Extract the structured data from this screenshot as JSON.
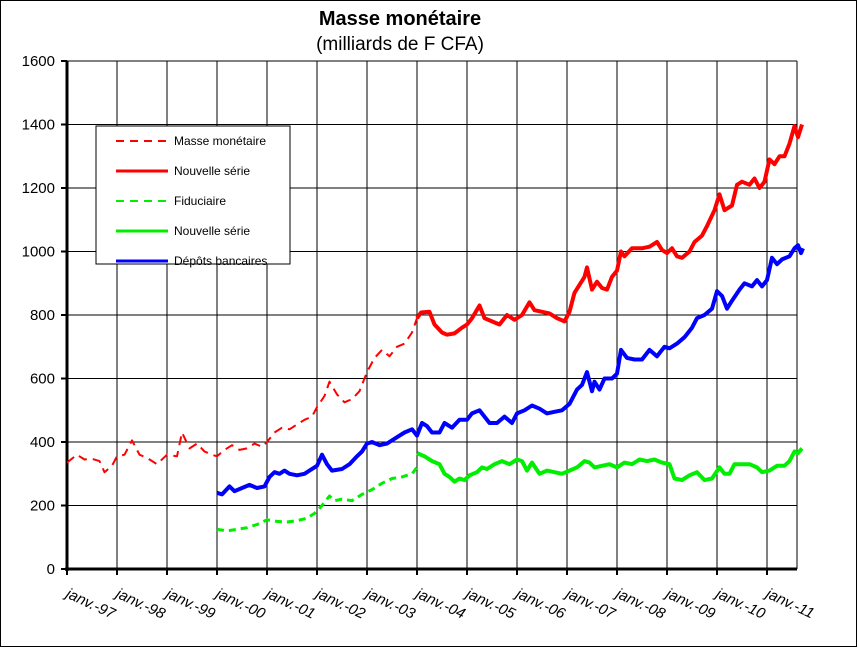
{
  "chart_data": {
    "type": "line",
    "title": "Masse monétaire",
    "subtitle": "(milliards de F CFA)",
    "xlabel": "",
    "ylabel": "",
    "ylim": [
      0,
      1600
    ],
    "yticks": [
      0,
      200,
      400,
      600,
      800,
      1000,
      1200,
      1400,
      1600
    ],
    "x_tick_labels": [
      "janv.-97",
      "janv.-98",
      "janv.-99",
      "janv.-00",
      "janv.-01",
      "janv.-02",
      "janv.-03",
      "janv.-04",
      "janv.-05",
      "janv.-06",
      "janv.-07",
      "janv.-08",
      "janv.-09",
      "janv.-10",
      "janv.-11"
    ],
    "xlim": [
      1997.0,
      2011.6
    ],
    "grid": true,
    "legend_position": "top-left",
    "series": [
      {
        "name": "Masse monétaire",
        "color": "#ff0000",
        "dash": true,
        "width": 2,
        "points": [
          [
            1997.0,
            335
          ],
          [
            1997.2,
            360
          ],
          [
            1997.35,
            345
          ],
          [
            1997.5,
            347
          ],
          [
            1997.65,
            340
          ],
          [
            1997.75,
            305
          ],
          [
            1997.9,
            325
          ],
          [
            1998.0,
            355
          ],
          [
            1998.15,
            360
          ],
          [
            1998.3,
            405
          ],
          [
            1998.45,
            360
          ],
          [
            1998.6,
            350
          ],
          [
            1998.8,
            330
          ],
          [
            1999.0,
            360
          ],
          [
            1999.2,
            355
          ],
          [
            1999.3,
            430
          ],
          [
            1999.45,
            380
          ],
          [
            1999.6,
            395
          ],
          [
            1999.75,
            370
          ],
          [
            1999.9,
            360
          ],
          [
            2000.0,
            355
          ],
          [
            2000.15,
            375
          ],
          [
            2000.3,
            390
          ],
          [
            2000.45,
            375
          ],
          [
            2000.6,
            380
          ],
          [
            2000.75,
            395
          ],
          [
            2000.9,
            385
          ],
          [
            2001.0,
            400
          ],
          [
            2001.15,
            430
          ],
          [
            2001.3,
            445
          ],
          [
            2001.45,
            440
          ],
          [
            2001.6,
            455
          ],
          [
            2001.75,
            470
          ],
          [
            2001.9,
            480
          ],
          [
            2002.0,
            510
          ],
          [
            2002.15,
            545
          ],
          [
            2002.25,
            590
          ],
          [
            2002.4,
            550
          ],
          [
            2002.55,
            525
          ],
          [
            2002.7,
            535
          ],
          [
            2002.85,
            560
          ],
          [
            2003.0,
            620
          ],
          [
            2003.15,
            665
          ],
          [
            2003.3,
            690
          ],
          [
            2003.45,
            670
          ],
          [
            2003.6,
            700
          ],
          [
            2003.75,
            710
          ],
          [
            2003.9,
            745
          ],
          [
            2004.0,
            790
          ]
        ]
      },
      {
        "name": "Nouvelle série",
        "color": "#ff0000",
        "dash": false,
        "width": 4,
        "points": [
          [
            2004.0,
            790
          ],
          [
            2004.08,
            808
          ],
          [
            2004.25,
            810
          ],
          [
            2004.35,
            770
          ],
          [
            2004.5,
            745
          ],
          [
            2004.6,
            738
          ],
          [
            2004.75,
            742
          ],
          [
            2004.9,
            760
          ],
          [
            2005.0,
            770
          ],
          [
            2005.1,
            790
          ],
          [
            2005.25,
            830
          ],
          [
            2005.35,
            790
          ],
          [
            2005.5,
            780
          ],
          [
            2005.65,
            770
          ],
          [
            2005.8,
            800
          ],
          [
            2005.95,
            785
          ],
          [
            2006.1,
            800
          ],
          [
            2006.25,
            840
          ],
          [
            2006.35,
            815
          ],
          [
            2006.5,
            810
          ],
          [
            2006.65,
            805
          ],
          [
            2006.8,
            790
          ],
          [
            2006.95,
            780
          ],
          [
            2007.05,
            810
          ],
          [
            2007.15,
            870
          ],
          [
            2007.35,
            920
          ],
          [
            2007.4,
            950
          ],
          [
            2007.5,
            880
          ],
          [
            2007.6,
            905
          ],
          [
            2007.7,
            885
          ],
          [
            2007.8,
            880
          ],
          [
            2007.9,
            920
          ],
          [
            2008.0,
            940
          ],
          [
            2008.08,
            1000
          ],
          [
            2008.15,
            985
          ],
          [
            2008.3,
            1010
          ],
          [
            2008.5,
            1010
          ],
          [
            2008.65,
            1015
          ],
          [
            2008.8,
            1030
          ],
          [
            2008.9,
            1005
          ],
          [
            2009.0,
            995
          ],
          [
            2009.1,
            1010
          ],
          [
            2009.2,
            985
          ],
          [
            2009.3,
            980
          ],
          [
            2009.45,
            1000
          ],
          [
            2009.55,
            1030
          ],
          [
            2009.7,
            1050
          ],
          [
            2009.8,
            1080
          ],
          [
            2009.95,
            1130
          ],
          [
            2010.05,
            1180
          ],
          [
            2010.15,
            1130
          ],
          [
            2010.3,
            1145
          ],
          [
            2010.4,
            1210
          ],
          [
            2010.5,
            1220
          ],
          [
            2010.65,
            1210
          ],
          [
            2010.75,
            1230
          ],
          [
            2010.85,
            1200
          ],
          [
            2010.95,
            1220
          ],
          [
            2011.05,
            1290
          ],
          [
            2011.15,
            1275
          ],
          [
            2011.25,
            1300
          ],
          [
            2011.35,
            1300
          ],
          [
            2011.45,
            1340
          ],
          [
            2011.55,
            1395
          ],
          [
            2011.62,
            1360
          ],
          [
            2011.7,
            1400
          ]
        ]
      },
      {
        "name": "Fiduciaire",
        "color": "#00ee00",
        "dash": true,
        "width": 3,
        "points": [
          [
            2000.0,
            125
          ],
          [
            2000.2,
            120
          ],
          [
            2000.4,
            125
          ],
          [
            2000.6,
            130
          ],
          [
            2000.8,
            140
          ],
          [
            2001.0,
            155
          ],
          [
            2001.2,
            150
          ],
          [
            2001.4,
            148
          ],
          [
            2001.6,
            152
          ],
          [
            2001.8,
            160
          ],
          [
            2001.95,
            175
          ],
          [
            2002.1,
            200
          ],
          [
            2002.25,
            230
          ],
          [
            2002.35,
            215
          ],
          [
            2002.5,
            220
          ],
          [
            2002.7,
            215
          ],
          [
            2002.9,
            235
          ],
          [
            2003.1,
            250
          ],
          [
            2003.3,
            270
          ],
          [
            2003.5,
            285
          ],
          [
            2003.7,
            290
          ],
          [
            2003.9,
            300
          ],
          [
            2004.0,
            320
          ]
        ]
      },
      {
        "name": "Nouvelle série",
        "color": "#00ee00",
        "dash": false,
        "width": 4,
        "points": [
          [
            2004.0,
            365
          ],
          [
            2004.15,
            355
          ],
          [
            2004.3,
            340
          ],
          [
            2004.45,
            330
          ],
          [
            2004.55,
            300
          ],
          [
            2004.65,
            290
          ],
          [
            2004.75,
            275
          ],
          [
            2004.85,
            285
          ],
          [
            2004.95,
            280
          ],
          [
            2005.05,
            295
          ],
          [
            2005.2,
            305
          ],
          [
            2005.3,
            320
          ],
          [
            2005.4,
            315
          ],
          [
            2005.55,
            330
          ],
          [
            2005.7,
            340
          ],
          [
            2005.85,
            330
          ],
          [
            2006.0,
            345
          ],
          [
            2006.1,
            340
          ],
          [
            2006.2,
            310
          ],
          [
            2006.3,
            335
          ],
          [
            2006.45,
            300
          ],
          [
            2006.6,
            310
          ],
          [
            2006.75,
            305
          ],
          [
            2006.9,
            300
          ],
          [
            2007.05,
            310
          ],
          [
            2007.2,
            320
          ],
          [
            2007.35,
            340
          ],
          [
            2007.45,
            335
          ],
          [
            2007.55,
            320
          ],
          [
            2007.7,
            325
          ],
          [
            2007.85,
            330
          ],
          [
            2008.0,
            320
          ],
          [
            2008.15,
            335
          ],
          [
            2008.3,
            330
          ],
          [
            2008.45,
            345
          ],
          [
            2008.6,
            340
          ],
          [
            2008.75,
            345
          ],
          [
            2008.9,
            335
          ],
          [
            2009.05,
            330
          ],
          [
            2009.15,
            285
          ],
          [
            2009.3,
            280
          ],
          [
            2009.45,
            295
          ],
          [
            2009.6,
            305
          ],
          [
            2009.75,
            280
          ],
          [
            2009.9,
            285
          ],
          [
            2010.05,
            320
          ],
          [
            2010.15,
            300
          ],
          [
            2010.25,
            300
          ],
          [
            2010.35,
            330
          ],
          [
            2010.5,
            330
          ],
          [
            2010.65,
            330
          ],
          [
            2010.8,
            320
          ],
          [
            2010.9,
            305
          ],
          [
            2011.05,
            310
          ],
          [
            2011.2,
            325
          ],
          [
            2011.35,
            325
          ],
          [
            2011.45,
            340
          ],
          [
            2011.55,
            370
          ],
          [
            2011.62,
            365
          ],
          [
            2011.7,
            380
          ]
        ]
      },
      {
        "name": "Dépôts bancaires",
        "color": "#0000ff",
        "dash": false,
        "width": 4,
        "points": [
          [
            2000.0,
            240
          ],
          [
            2000.1,
            235
          ],
          [
            2000.25,
            260
          ],
          [
            2000.35,
            245
          ],
          [
            2000.5,
            255
          ],
          [
            2000.65,
            265
          ],
          [
            2000.8,
            255
          ],
          [
            2000.95,
            260
          ],
          [
            2001.05,
            290
          ],
          [
            2001.15,
            305
          ],
          [
            2001.25,
            300
          ],
          [
            2001.35,
            310
          ],
          [
            2001.45,
            300
          ],
          [
            2001.6,
            295
          ],
          [
            2001.75,
            300
          ],
          [
            2001.85,
            310
          ],
          [
            2002.0,
            325
          ],
          [
            2002.1,
            360
          ],
          [
            2002.2,
            330
          ],
          [
            2002.3,
            310
          ],
          [
            2002.5,
            315
          ],
          [
            2002.65,
            330
          ],
          [
            2002.8,
            355
          ],
          [
            2002.9,
            370
          ],
          [
            2003.0,
            395
          ],
          [
            2003.1,
            400
          ],
          [
            2003.25,
            390
          ],
          [
            2003.4,
            395
          ],
          [
            2003.6,
            415
          ],
          [
            2003.75,
            430
          ],
          [
            2003.9,
            440
          ],
          [
            2004.0,
            420
          ],
          [
            2004.1,
            460
          ],
          [
            2004.2,
            450
          ],
          [
            2004.3,
            430
          ],
          [
            2004.45,
            430
          ],
          [
            2004.55,
            460
          ],
          [
            2004.7,
            445
          ],
          [
            2004.85,
            470
          ],
          [
            2005.0,
            470
          ],
          [
            2005.1,
            490
          ],
          [
            2005.25,
            500
          ],
          [
            2005.35,
            480
          ],
          [
            2005.45,
            460
          ],
          [
            2005.6,
            460
          ],
          [
            2005.75,
            480
          ],
          [
            2005.9,
            460
          ],
          [
            2006.0,
            490
          ],
          [
            2006.15,
            500
          ],
          [
            2006.3,
            515
          ],
          [
            2006.45,
            505
          ],
          [
            2006.6,
            490
          ],
          [
            2006.75,
            495
          ],
          [
            2006.9,
            500
          ],
          [
            2007.05,
            520
          ],
          [
            2007.2,
            565
          ],
          [
            2007.3,
            580
          ],
          [
            2007.4,
            620
          ],
          [
            2007.5,
            560
          ],
          [
            2007.55,
            590
          ],
          [
            2007.65,
            565
          ],
          [
            2007.75,
            600
          ],
          [
            2007.9,
            600
          ],
          [
            2008.0,
            615
          ],
          [
            2008.08,
            690
          ],
          [
            2008.2,
            665
          ],
          [
            2008.35,
            660
          ],
          [
            2008.5,
            660
          ],
          [
            2008.65,
            690
          ],
          [
            2008.8,
            670
          ],
          [
            2008.95,
            700
          ],
          [
            2009.05,
            695
          ],
          [
            2009.2,
            710
          ],
          [
            2009.35,
            730
          ],
          [
            2009.5,
            760
          ],
          [
            2009.6,
            790
          ],
          [
            2009.75,
            800
          ],
          [
            2009.9,
            820
          ],
          [
            2010.0,
            875
          ],
          [
            2010.1,
            860
          ],
          [
            2010.2,
            820
          ],
          [
            2010.3,
            845
          ],
          [
            2010.45,
            880
          ],
          [
            2010.55,
            900
          ],
          [
            2010.7,
            890
          ],
          [
            2010.8,
            910
          ],
          [
            2010.9,
            890
          ],
          [
            2011.0,
            910
          ],
          [
            2011.1,
            980
          ],
          [
            2011.2,
            960
          ],
          [
            2011.3,
            975
          ],
          [
            2011.45,
            985
          ],
          [
            2011.55,
            1010
          ],
          [
            2011.62,
            1020
          ],
          [
            2011.68,
            995
          ],
          [
            2011.72,
            1010
          ]
        ]
      }
    ]
  }
}
